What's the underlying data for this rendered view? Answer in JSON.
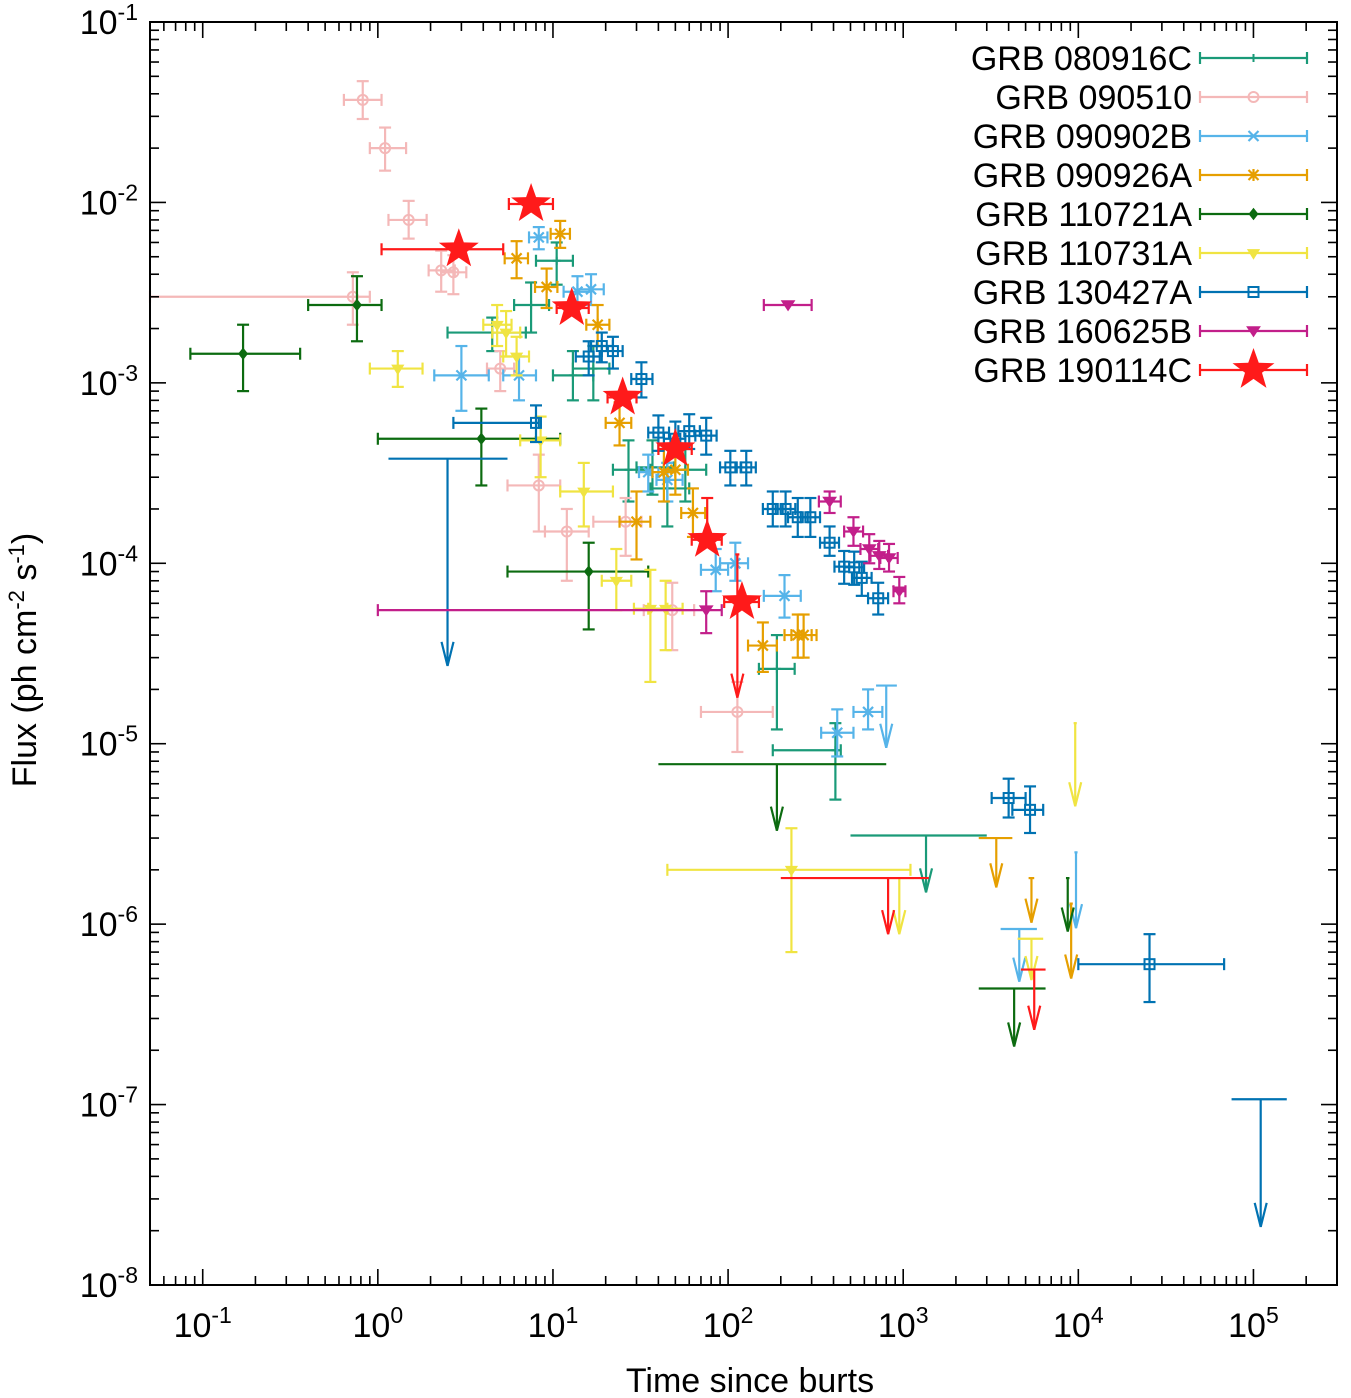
{
  "chart_data": {
    "type": "scatter",
    "xscale": "log",
    "yscale": "log",
    "xlim": [
      0.05,
      300000
    ],
    "ylim": [
      1e-08,
      0.1
    ],
    "xlabel": "Time since burts",
    "ylabel": "Flux (ph cm",
    "ylabel_exp1": "-2",
    "ylabel_mid": " s",
    "ylabel_exp2": "-1",
    "ylabel_end": ")",
    "x_ticks": [
      {
        "value": 0.1,
        "base": "10",
        "exp": "-1"
      },
      {
        "value": 1,
        "base": "10",
        "exp": "0"
      },
      {
        "value": 10,
        "base": "10",
        "exp": "1"
      },
      {
        "value": 100,
        "base": "10",
        "exp": "2"
      },
      {
        "value": 1000,
        "base": "10",
        "exp": "3"
      },
      {
        "value": 10000,
        "base": "10",
        "exp": "4"
      },
      {
        "value": 100000,
        "base": "10",
        "exp": "5"
      }
    ],
    "y_ticks": [
      {
        "value": 1e-08,
        "base": "10",
        "exp": "-8"
      },
      {
        "value": 1e-07,
        "base": "10",
        "exp": "-7"
      },
      {
        "value": 1e-06,
        "base": "10",
        "exp": "-6"
      },
      {
        "value": 1e-05,
        "base": "10",
        "exp": "-5"
      },
      {
        "value": 0.0001,
        "base": "10",
        "exp": "-4"
      },
      {
        "value": 0.001,
        "base": "10",
        "exp": "-3"
      },
      {
        "value": 0.01,
        "base": "10",
        "exp": "-2"
      },
      {
        "value": 0.1,
        "base": "10",
        "exp": "-1"
      }
    ],
    "legend_position": "top-right",
    "series": [
      {
        "name": "GRB 080916C",
        "color": "#1a9a78",
        "marker": "plus",
        "points": [
          [
            4.5,
            0.0019,
            2.5,
            7,
            0.0015,
            0.0023
          ],
          [
            7.5,
            0.0027,
            6,
            9.5,
            0.0019,
            0.0036
          ],
          [
            10.5,
            0.00475,
            8,
            13,
            0.0035,
            0.006
          ],
          [
            13,
            0.0011,
            10,
            17,
            0.0008,
            0.0015
          ],
          [
            17,
            0.0012,
            13,
            21,
            0.0008,
            0.0016
          ],
          [
            27,
            0.00033,
            22,
            36,
            0.00022,
            0.00048
          ],
          [
            37,
            0.00034,
            30,
            49,
            0.00024,
            0.00048
          ],
          [
            45,
            0.00026,
            36,
            60,
            0.00016,
            0.00036
          ],
          [
            57,
            0.00033,
            45,
            75,
            0.00022,
            0.00045
          ],
          [
            190,
            2.6e-05,
            150,
            240,
            1.2e-05,
            4e-05
          ],
          [
            410,
            9.2e-06,
            180,
            440,
            4.9e-06,
            1.3e-05
          ]
        ],
        "limits": [
          [
            1350,
            3.1e-06,
            500,
            3000,
            1.5e-06
          ]
        ]
      },
      {
        "name": "GRB 090510",
        "color": "#f4b8b8",
        "marker": "circle",
        "points": [
          [
            0.82,
            0.037,
            0.64,
            1.05,
            0.029,
            0.047
          ],
          [
            1.1,
            0.02,
            0.9,
            1.45,
            0.015,
            0.026
          ],
          [
            1.5,
            0.008,
            1.15,
            1.9,
            0.0063,
            0.0102
          ],
          [
            0.72,
            0.003,
            0.05,
            0.9,
            0.0021,
            0.0041
          ],
          [
            2.3,
            0.0042,
            1.95,
            2.75,
            0.0032,
            0.0054
          ],
          [
            2.7,
            0.0041,
            2.3,
            3.2,
            0.0031,
            0.0051
          ],
          [
            5,
            0.0012,
            4.2,
            6,
            0.0009,
            0.0015
          ],
          [
            8.3,
            0.00027,
            5.5,
            11,
            0.00015,
            0.0004
          ],
          [
            12,
            0.00015,
            9,
            16,
            8e-05,
            0.0002
          ],
          [
            26,
            0.00017,
            17,
            32,
            0.00011,
            0.00023
          ],
          [
            48,
            5.5e-05,
            33,
            64,
            3.3e-05,
            7.8e-05
          ],
          [
            113,
            1.5e-05,
            70,
            180,
            9e-06,
            2.2e-05
          ]
        ],
        "limits": []
      },
      {
        "name": "GRB 090902B",
        "color": "#56b4e9",
        "marker": "x",
        "points": [
          [
            3,
            0.0011,
            2.1,
            4.3,
            0.0007,
            0.0016
          ],
          [
            6.4,
            0.0011,
            5.2,
            8,
            0.0008,
            0.0014
          ],
          [
            8.3,
            0.0064,
            7.3,
            9.3,
            0.0055,
            0.0073
          ],
          [
            13.8,
            0.0032,
            11.5,
            16.5,
            0.0026,
            0.0039
          ],
          [
            16.5,
            0.0033,
            13.8,
            19.5,
            0.0027,
            0.004
          ],
          [
            35,
            0.00032,
            31,
            40,
            0.00025,
            0.0004
          ],
          [
            45,
            0.00029,
            39,
            55,
            0.00022,
            0.00036
          ],
          [
            85,
            9.2e-05,
            70,
            100,
            7e-05,
            0.00012
          ],
          [
            110,
            0.0001,
            90,
            130,
            8e-05,
            0.00013
          ],
          [
            210,
            6.6e-05,
            160,
            260,
            5e-05,
            8.6e-05
          ],
          [
            420,
            1.15e-05,
            340,
            520,
            8.5e-06,
            1.55e-05
          ],
          [
            630,
            1.5e-05,
            520,
            760,
            1.2e-05,
            2e-05
          ]
        ],
        "limits": [
          [
            800,
            2.1e-05,
            700,
            920,
            9.5e-06
          ],
          [
            9700,
            2.5e-06,
            9500,
            9900,
            9.5e-07
          ],
          [
            4600,
            9.4e-07,
            3600,
            5800,
            4.8e-07
          ]
        ]
      },
      {
        "name": "GRB 090926A",
        "color": "#e69f00",
        "marker": "asterisk",
        "points": [
          [
            6.2,
            0.0049,
            5.3,
            7.2,
            0.0038,
            0.0061
          ],
          [
            9.2,
            0.0034,
            7.9,
            10.6,
            0.0026,
            0.0043
          ],
          [
            11,
            0.0067,
            9.7,
            12.5,
            0.0056,
            0.0079
          ],
          [
            18,
            0.0021,
            15.5,
            21,
            0.0016,
            0.0027
          ],
          [
            24,
            0.0006,
            20,
            28,
            0.00045,
            0.00078
          ],
          [
            30,
            0.00017,
            24,
            36,
            0.000105,
            0.00025
          ],
          [
            43,
            0.00032,
            37,
            50,
            0.00022,
            0.00045
          ],
          [
            50,
            0.00033,
            43,
            59,
            0.00024,
            0.00045
          ],
          [
            63,
            0.00019,
            54,
            74,
            0.00014,
            0.00026
          ],
          [
            158,
            3.5e-05,
            130,
            190,
            2.5e-05,
            4.7e-05
          ],
          [
            250,
            4e-05,
            210,
            300,
            3e-05,
            5.2e-05
          ],
          [
            270,
            4e-05,
            230,
            320,
            3e-05,
            5.2e-05
          ]
        ],
        "limits": [
          [
            3400,
            3e-06,
            2700,
            4200,
            1.6e-06
          ],
          [
            5400,
            1.8e-06,
            5200,
            5600,
            1.02e-06
          ],
          [
            9100,
            1.3e-06,
            8900,
            9300,
            5e-07
          ]
        ]
      },
      {
        "name": "GRB 110721A",
        "color": "#0c6b10",
        "marker": "diamond",
        "points": [
          [
            0.17,
            0.00145,
            0.085,
            0.36,
            0.0009,
            0.0021
          ],
          [
            0.76,
            0.0027,
            0.4,
            1.05,
            0.0017,
            0.0039
          ],
          [
            3.9,
            0.00049,
            1,
            11,
            0.00027,
            0.00072
          ],
          [
            16,
            9e-05,
            5.5,
            35,
            4.3e-05,
            0.00013
          ]
        ],
        "limits": [
          [
            190,
            7.7e-06,
            40,
            800,
            3.3e-06
          ],
          [
            4300,
            4.4e-07,
            2700,
            6500,
            2.1e-07
          ],
          [
            8700,
            1.8e-06,
            8500,
            8900,
            9.1e-07
          ]
        ]
      },
      {
        "name": "GRB 110731A",
        "color": "#f0e442",
        "marker": "triangle-down",
        "points": [
          [
            1.3,
            0.0012,
            0.9,
            1.8,
            0.00095,
            0.0015
          ],
          [
            4.8,
            0.0021,
            4,
            5.8,
            0.0016,
            0.0027
          ],
          [
            5.4,
            0.0019,
            4.5,
            6.5,
            0.0014,
            0.0025
          ],
          [
            6.2,
            0.0014,
            5.2,
            7.3,
            0.0011,
            0.0018
          ],
          [
            8.5,
            0.00048,
            6.5,
            11,
            0.0003,
            0.00065
          ],
          [
            15,
            0.00025,
            11,
            22,
            0.00016,
            0.00036
          ],
          [
            23,
            8e-05,
            19,
            28,
            5.5e-05,
            0.00012
          ],
          [
            36,
            5.6e-05,
            29,
            45,
            2.2e-05,
            9.2e-05
          ],
          [
            44,
            5.6e-05,
            35,
            55,
            3.3e-05,
            8e-05
          ],
          [
            230,
            2e-06,
            45,
            1100,
            7e-07,
            3.4e-06
          ]
        ],
        "limits": [
          [
            950,
            1.8e-06,
            800,
            1150,
            8.8e-07
          ],
          [
            9600,
            1.3e-05,
            9400,
            9800,
            4.5e-06
          ],
          [
            5400,
            8.3e-07,
            4500,
            6300,
            4.9e-07
          ]
        ]
      },
      {
        "name": "GRB 130427A",
        "color": "#0072b2",
        "marker": "square",
        "points": [
          [
            8,
            0.0006,
            2.7,
            8.3,
            0.00047,
            0.00075
          ],
          [
            16,
            0.0014,
            13.5,
            18.5,
            0.0011,
            0.0017
          ],
          [
            19,
            0.0016,
            16.5,
            22,
            0.0013,
            0.0019
          ],
          [
            22,
            0.0015,
            19,
            25,
            0.0012,
            0.0018
          ],
          [
            32,
            0.00105,
            28,
            37,
            0.00083,
            0.0013
          ],
          [
            40,
            0.00053,
            35,
            46,
            0.00042,
            0.00066
          ],
          [
            50,
            0.00049,
            43,
            57,
            0.00039,
            0.00061
          ],
          [
            60,
            0.00054,
            52,
            69,
            0.00043,
            0.00067
          ],
          [
            75,
            0.00051,
            65,
            86,
            0.0004,
            0.00064
          ],
          [
            103,
            0.00034,
            90,
            118,
            0.00027,
            0.00042
          ],
          [
            127,
            0.00034,
            112,
            144,
            0.00027,
            0.00042
          ],
          [
            180,
            0.0002,
            158,
            205,
            0.00016,
            0.00025
          ],
          [
            213,
            0.0002,
            187,
            242,
            0.00016,
            0.00025
          ],
          [
            250,
            0.00018,
            220,
            285,
            0.00014,
            0.00023
          ],
          [
            295,
            0.00018,
            260,
            335,
            0.00014,
            0.00023
          ],
          [
            380,
            0.00013,
            335,
            430,
            0.00011,
            0.00016
          ],
          [
            460,
            9.58e-05,
            405,
            525,
            7.7e-05,
            0.000117
          ],
          [
            525,
            9.5e-05,
            462,
            598,
            7.6e-05,
            0.000116
          ],
          [
            580,
            8.3e-05,
            510,
            660,
            6.6e-05,
            0.000102
          ],
          [
            720,
            6.4e-05,
            630,
            820,
            5.2e-05,
            7.8e-05
          ],
          [
            4000,
            5e-06,
            3200,
            5000,
            3.9e-06,
            6.4e-06
          ],
          [
            5300,
            4.3e-06,
            4200,
            6300,
            3.2e-06,
            5.8e-06
          ],
          [
            25500,
            6e-07,
            10000,
            68000,
            3.7e-07,
            8.8e-07
          ]
        ],
        "limits": [
          [
            2.5,
            0.00038,
            1.15,
            5.5,
            2.7e-05
          ],
          [
            110000,
            1.07e-07,
            75000,
            155000,
            2.1e-08
          ]
        ]
      },
      {
        "name": "GRB 160625B",
        "color": "#c21f8a",
        "marker": "triangle-down-filled",
        "points": [
          [
            220,
            0.0027,
            160,
            300,
            0.0027,
            0.0027
          ],
          [
            380,
            0.00022,
            330,
            440,
            0.00019,
            0.00025
          ],
          [
            520,
            0.00015,
            460,
            590,
            0.000125,
            0.00018
          ],
          [
            640,
            0.00012,
            570,
            720,
            0.0001,
            0.000145
          ],
          [
            730,
            0.00011,
            650,
            820,
            9.3e-05,
            0.000133
          ],
          [
            830,
            0.000107,
            740,
            930,
            9e-05,
            0.000128
          ],
          [
            950,
            7e-05,
            880,
            1030,
            6e-05,
            8.4e-05
          ],
          [
            75,
            5.5e-05,
            1,
            92,
            4.1e-05,
            7e-05
          ]
        ],
        "limits": []
      },
      {
        "name": "GRB 190114C",
        "color": "#ff1a1a",
        "marker": "star",
        "points": [
          [
            2.9,
            0.0055,
            1.05,
            5.2,
            0.0055,
            0.0055
          ],
          [
            7.5,
            0.0098,
            5.6,
            10,
            0.0098,
            0.0098
          ],
          [
            12.8,
            0.0026,
            10.5,
            16,
            0.0026,
            0.0026
          ],
          [
            25,
            0.00083,
            20.5,
            30,
            0.00083,
            0.00083
          ],
          [
            50,
            0.00043,
            40,
            62,
            0.00043,
            0.00043
          ],
          [
            76,
            0.000135,
            62,
            92,
            0.000135,
            0.00023
          ],
          [
            120,
            6.1e-05,
            95,
            150,
            6.1e-05,
            6.1e-05
          ]
        ],
        "limits": [
          [
            113,
            0.000112,
            110,
            116,
            1.8e-05
          ],
          [
            820,
            1.8e-06,
            200,
            1400,
            8.8e-07
          ],
          [
            5600,
            5.6e-07,
            4700,
            6500,
            2.6e-07
          ]
        ]
      }
    ]
  }
}
